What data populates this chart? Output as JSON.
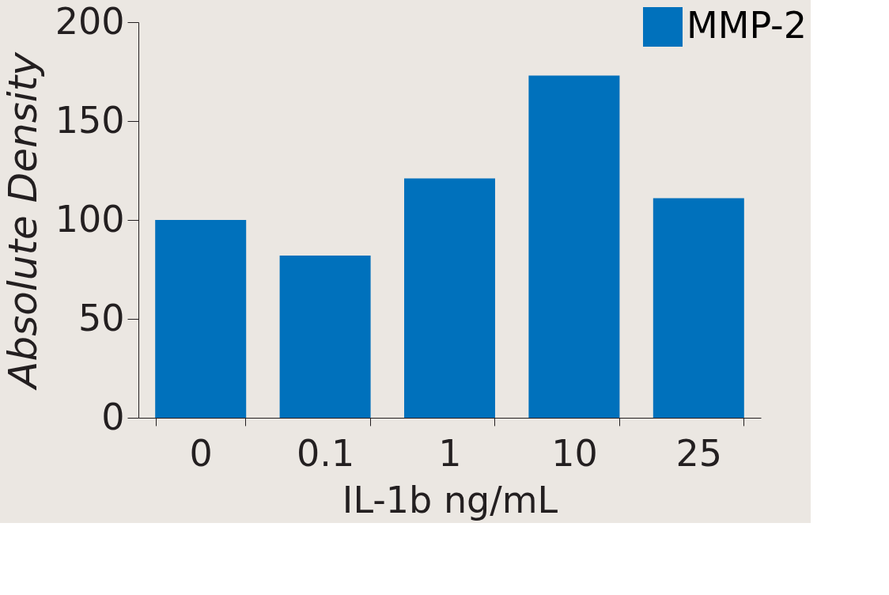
{
  "chart_data": {
    "type": "bar",
    "xlabel": "IL-1b ng/mL",
    "ylabel": "Absolute Density",
    "categories": [
      "0",
      "0.1",
      "1",
      "10",
      "25"
    ],
    "series": [
      {
        "name": "MMP-2",
        "color": "#0071bc",
        "values": [
          100,
          82,
          121,
          173,
          111
        ]
      }
    ],
    "ylim": [
      0,
      200
    ],
    "yticks": [
      0,
      50,
      100,
      150,
      200
    ],
    "grid": false,
    "legend": "top right"
  }
}
